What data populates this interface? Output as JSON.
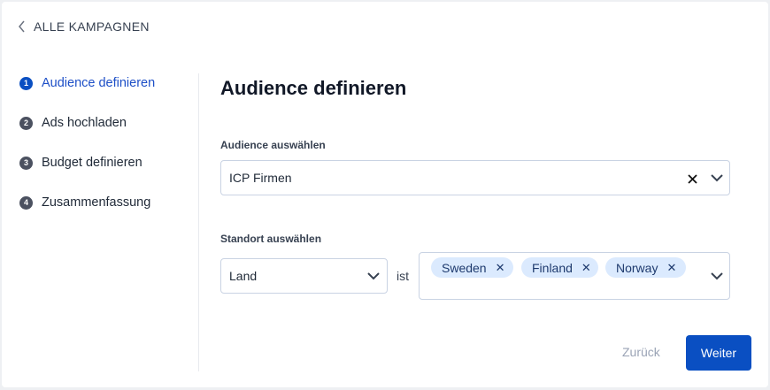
{
  "back_link": {
    "label": "ALLE KAMPAGNEN"
  },
  "steps": [
    {
      "number": "1",
      "label": "Audience definieren",
      "active": true
    },
    {
      "number": "2",
      "label": "Ads hochladen",
      "active": false
    },
    {
      "number": "3",
      "label": "Budget definieren",
      "active": false
    },
    {
      "number": "4",
      "label": "Zusammenfassung",
      "active": false
    }
  ],
  "main": {
    "title": "Audience definieren",
    "audience": {
      "label": "Audience auswählen",
      "value": "ICP Firmen"
    },
    "location": {
      "label": "Standort auswählen",
      "type_value": "Land",
      "operator": "ist",
      "tags": [
        "Sweden",
        "Finland",
        "Norway"
      ]
    }
  },
  "footer": {
    "back_label": "Zurück",
    "next_label": "Weiter"
  },
  "colors": {
    "accent": "#0a4fc2",
    "tag_bg": "#dbeafe"
  }
}
